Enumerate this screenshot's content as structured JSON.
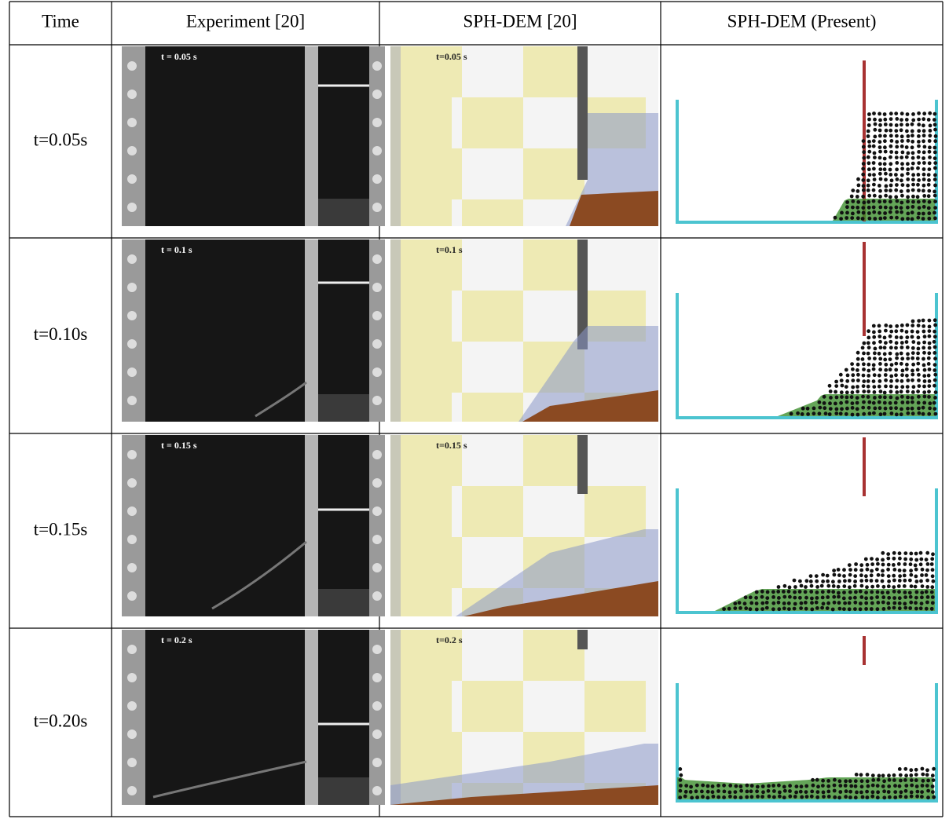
{
  "table": {
    "header": [
      "Time",
      "Experiment [20]",
      "SPH-DEM [20]",
      "SPH-DEM (Present)"
    ],
    "rows": [
      {
        "time": "t=0.05s",
        "experiment_label": "t = 0.05 s",
        "sph_dem_label": "t=0.05 s"
      },
      {
        "time": "t=0.10s",
        "experiment_label": "t = 0.1 s",
        "sph_dem_label": "t=0.1 s"
      },
      {
        "time": "t=0.15s",
        "experiment_label": "t = 0.15 s",
        "sph_dem_label": "t=0.15 s"
      },
      {
        "time": "t=0.20s",
        "experiment_label": "t = 0.2 s",
        "sph_dem_label": "t=0.2 s"
      }
    ]
  }
}
